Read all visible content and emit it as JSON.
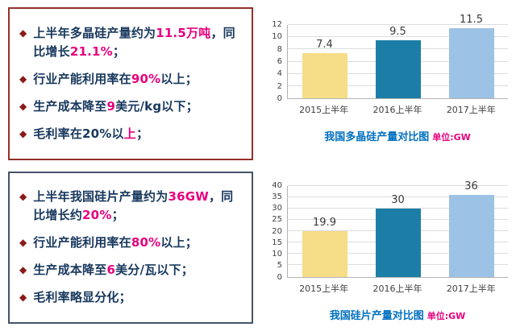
{
  "colors": {
    "text_navy": "#17375d",
    "highlight_pink": "#e6007e",
    "caption_blue": "#0070c0",
    "box1_border": "#94302a",
    "box2_border": "#44546a",
    "diamond": "#8b1a1a"
  },
  "panels": [
    {
      "name": "polysilicon",
      "bullets": [
        {
          "segments": [
            {
              "text": "上半年多晶硅产量约为"
            },
            {
              "text": "11.5万吨",
              "highlight": true
            },
            {
              "text": "，同比增长"
            },
            {
              "text": "21.1%",
              "highlight": true
            },
            {
              "text": "；"
            }
          ]
        },
        {
          "segments": [
            {
              "text": "行业产能利用率在"
            },
            {
              "text": "90%",
              "highlight": true
            },
            {
              "text": "以上；"
            }
          ]
        },
        {
          "segments": [
            {
              "text": "生产成本降至"
            },
            {
              "text": "9",
              "highlight": true
            },
            {
              "text": "美元/kg以下；"
            }
          ]
        },
        {
          "segments": [
            {
              "text": "毛利率在20%以"
            },
            {
              "text": "上",
              "highlight": true
            },
            {
              "text": "；"
            }
          ]
        }
      ]
    },
    {
      "name": "wafer",
      "bullets": [
        {
          "segments": [
            {
              "text": "上半年我国硅片产量约为"
            },
            {
              "text": "36GW",
              "highlight": true
            },
            {
              "text": "，同比增长约"
            },
            {
              "text": "20%",
              "highlight": true
            },
            {
              "text": "；"
            }
          ]
        },
        {
          "segments": [
            {
              "text": "行业产能利用率在"
            },
            {
              "text": "80%",
              "highlight": true
            },
            {
              "text": "以上；"
            }
          ]
        },
        {
          "segments": [
            {
              "text": "生产成本降至"
            },
            {
              "text": "6",
              "highlight": true
            },
            {
              "text": "美分/瓦以下；"
            }
          ]
        },
        {
          "segments": [
            {
              "text": "毛利率略显分化；"
            }
          ]
        }
      ]
    }
  ],
  "chart_data": [
    {
      "type": "bar",
      "title": "我国多晶硅产量对比图",
      "unit_label": "单位:GW",
      "categories": [
        "2015上半年",
        "2016上半年",
        "2017上半年"
      ],
      "values": [
        7.4,
        9.5,
        11.5
      ],
      "bar_colors": [
        "#f6dd87",
        "#1c7ea6",
        "#9cc2e5"
      ],
      "ylim": [
        0,
        12
      ],
      "ytick_step": 2,
      "grid": true,
      "legend": false,
      "value_labels": true
    },
    {
      "type": "bar",
      "title": "我国硅片产量对比图",
      "unit_label": "单位:GW",
      "categories": [
        "2015上半年",
        "2016上半年",
        "2017上半年"
      ],
      "values": [
        19.9,
        30,
        36
      ],
      "bar_colors": [
        "#f6dd87",
        "#1c7ea6",
        "#9cc2e5"
      ],
      "ylim": [
        0,
        40
      ],
      "ytick_step": 5,
      "grid": true,
      "legend": false,
      "value_labels": true
    }
  ]
}
